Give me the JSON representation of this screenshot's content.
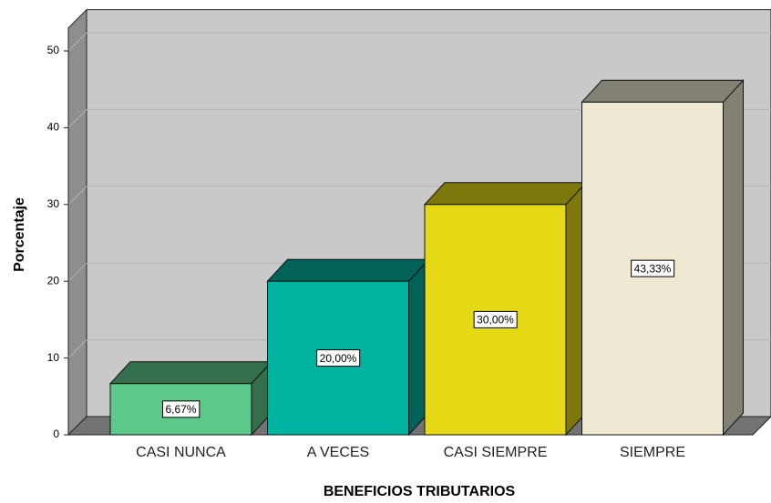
{
  "chart_data": {
    "type": "bar3d",
    "categories": [
      "CASI NUNCA",
      "A VECES",
      "CASI SIEMPRE",
      "SIEMPRE"
    ],
    "values": [
      6.67,
      20.0,
      30.0,
      43.33
    ],
    "value_labels": [
      "6,67%",
      "20,00%",
      "30,00%",
      "43,33%"
    ],
    "colors": [
      "#5cc98a",
      "#00b3a1",
      "#e5d814",
      "#efe8d3"
    ],
    "x_label": "BENEFICIOS TRIBUTARIOS",
    "y_label": "Porcentaje",
    "ylim": [
      0,
      53
    ],
    "yticks": [
      0,
      10,
      20,
      30,
      40,
      50
    ],
    "grid": true
  }
}
